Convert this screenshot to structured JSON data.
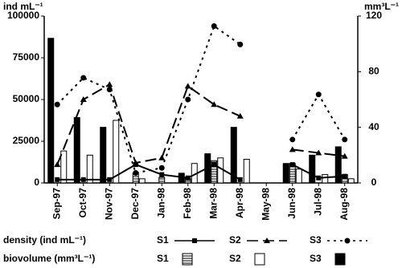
{
  "chart_data": {
    "type": "bar-line",
    "y_label": "ind mL⁻¹",
    "y2_label": "mm³L⁻¹",
    "density_label": "density (ind mL⁻¹)",
    "biovolume_label": "biovolume (mm³L⁻¹)",
    "categories": [
      "Sep-97",
      "Oct-97",
      "Nov-97",
      "Dec-97",
      "Jan-98",
      "Feb-98",
      "Mar-98",
      "Apr-98",
      "May-98",
      "Jun-98",
      "Jul-98",
      "Aug-98"
    ],
    "ylim": [
      0,
      100000
    ],
    "yticks": [
      0,
      25000,
      50000,
      75000,
      100000
    ],
    "y2lim": [
      0,
      120
    ],
    "y2ticks": [
      0,
      40,
      80,
      120
    ],
    "series": [
      {
        "name": "S1",
        "kind": "line",
        "color": "#000000",
        "marker": "square",
        "dash": "none",
        "values": [
          2000,
          2000,
          2000,
          11000,
          5000,
          3000,
          11000,
          2000,
          null,
          11000,
          3000,
          4000
        ]
      },
      {
        "name": "S2",
        "kind": "line",
        "color": "#000000",
        "marker": "triangle",
        "dash": "14 6",
        "values": [
          11000,
          50000,
          59000,
          12000,
          15000,
          58000,
          47000,
          40000,
          null,
          20000,
          18000,
          16000
        ]
      },
      {
        "name": "S3",
        "kind": "line",
        "color": "#000000",
        "marker": "circle",
        "dash": "3 5",
        "values": [
          47000,
          63000,
          56000,
          6000,
          9000,
          50000,
          94000,
          83000,
          null,
          26000,
          53000,
          26000
        ]
      },
      {
        "name": "S1",
        "kind": "bar",
        "axis": "y2",
        "color": "#000000",
        "pattern": "stripes",
        "values": [
          0,
          0,
          0,
          7,
          4,
          3,
          16,
          0,
          null,
          14,
          0,
          6
        ]
      },
      {
        "name": "S2",
        "kind": "bar",
        "axis": "y2",
        "color": "#000000",
        "pattern": "white",
        "values": [
          23,
          20,
          45,
          3,
          0,
          14,
          18,
          17,
          null,
          10,
          6,
          3
        ]
      },
      {
        "name": "S3",
        "kind": "bar",
        "axis": "y2",
        "color": "#000000",
        "pattern": "black",
        "values": [
          104,
          47,
          40,
          0,
          0,
          7,
          21,
          40,
          null,
          14,
          20,
          26
        ]
      }
    ]
  }
}
